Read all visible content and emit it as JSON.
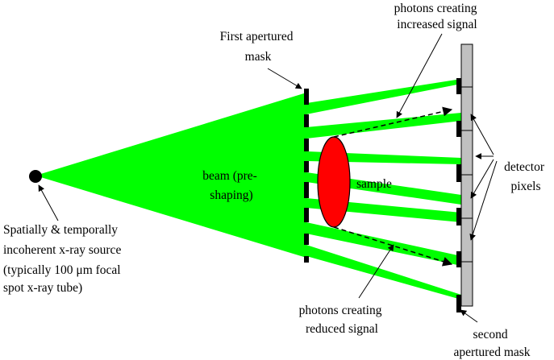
{
  "colors": {
    "beam": "#00ff00",
    "sample": "#ff0000",
    "detector": "#c0c0c0",
    "mask": "#000000",
    "ink": "#000000"
  },
  "labels": {
    "source": [
      "Spatially & temporally",
      "incoherent x-ray source",
      "(typically 100 μm focal",
      "spot x-ray tube)"
    ],
    "first_mask": [
      "First apertured",
      "mask"
    ],
    "beam": [
      "beam (pre-",
      "shaping)"
    ],
    "sample": "sample",
    "photons_increased": [
      "photons creating",
      "increased signal"
    ],
    "photons_reduced": [
      "photons creating",
      "reduced signal"
    ],
    "detector_pixels": [
      "detector",
      "pixels"
    ],
    "second_mask": [
      "second",
      "apertured mask"
    ]
  },
  "icons": [
    "source-dot",
    "sample-ellipse",
    "detector-strip",
    "mask-segments",
    "dashed-ray-arrows"
  ]
}
